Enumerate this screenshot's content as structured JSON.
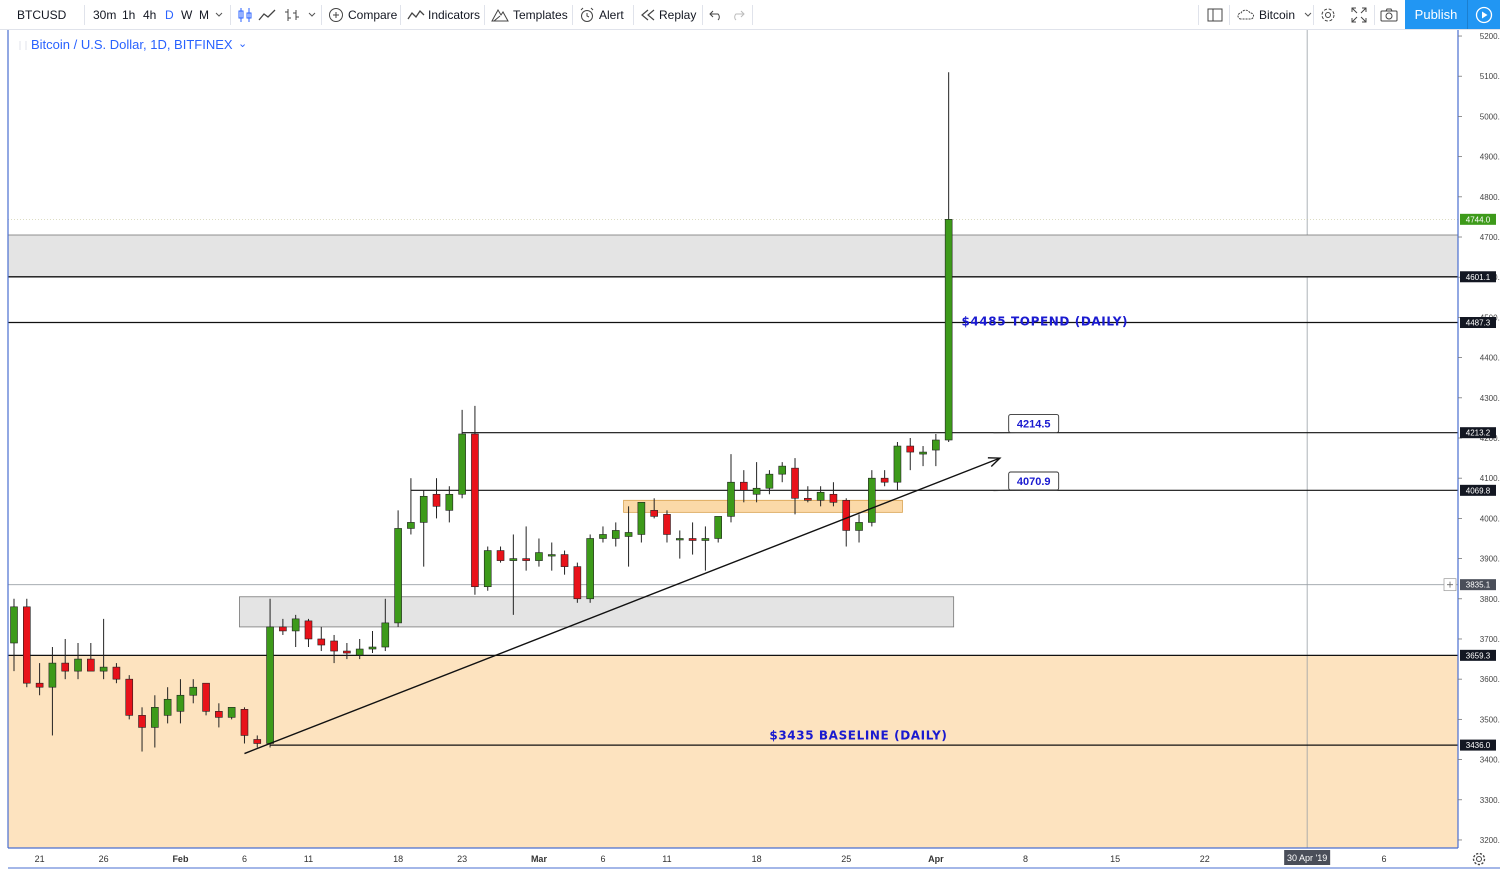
{
  "toolbar": {
    "symbol": "BTCUSD",
    "intervals": [
      "30m",
      "1h",
      "4h",
      "D",
      "W",
      "M"
    ],
    "active_interval": "D",
    "compare_label": "Compare",
    "indicators_label": "Indicators",
    "templates_label": "Templates",
    "alert_label": "Alert",
    "replay_label": "Replay",
    "layout_name": "Bitcoin",
    "publish_label": "Publish"
  },
  "chart_title": "Bitcoin / U.S. Dollar, 1D, BITFINEX",
  "colors": {
    "up": "#3d9a1a",
    "down": "#e8121a",
    "accent": "#2962ff",
    "zone_fill": "#fde3bf",
    "gray_zone": "#e4e4e4",
    "annotation": "#1a1ad0"
  },
  "chart_data": {
    "type": "candlestick",
    "title": "Bitcoin / U.S. Dollar, 1D, BITFINEX",
    "ylim": [
      3180,
      5215
    ],
    "xlim_days": [
      -2,
      110
    ],
    "y_ticks": [
      3200,
      3300,
      3400,
      3500,
      3600,
      3700,
      3800,
      3900,
      4000,
      4100,
      4200,
      4300,
      4400,
      4500,
      4600,
      4700,
      4800,
      4900,
      5000,
      5100,
      5200
    ],
    "x_ticks": [
      {
        "d": 0,
        "label": "21"
      },
      {
        "d": 5,
        "label": "26"
      },
      {
        "d": 11,
        "label": "Feb"
      },
      {
        "d": 16,
        "label": "6"
      },
      {
        "d": 21,
        "label": "11"
      },
      {
        "d": 28,
        "label": "18"
      },
      {
        "d": 33,
        "label": "23"
      },
      {
        "d": 39,
        "label": "Mar"
      },
      {
        "d": 44,
        "label": "6"
      },
      {
        "d": 49,
        "label": "11"
      },
      {
        "d": 56,
        "label": "18"
      },
      {
        "d": 63,
        "label": "25"
      },
      {
        "d": 70,
        "label": "Apr"
      },
      {
        "d": 77,
        "label": "8"
      },
      {
        "d": 84,
        "label": "15"
      },
      {
        "d": 91,
        "label": "22"
      },
      {
        "d": 105,
        "label": "6"
      }
    ],
    "crosshair": {
      "date_label": "30 Apr '19",
      "d": 99,
      "price_label": "3835.1",
      "price": 3835.1
    },
    "last_price": 4744.0,
    "candles": [
      [
        -2,
        3690,
        3800,
        3620,
        3780
      ],
      [
        -1,
        3780,
        3800,
        3580,
        3590
      ],
      [
        0,
        3590,
        3640,
        3560,
        3580
      ],
      [
        1,
        3580,
        3680,
        3460,
        3640
      ],
      [
        2,
        3640,
        3700,
        3600,
        3620
      ],
      [
        3,
        3620,
        3690,
        3600,
        3650
      ],
      [
        4,
        3650,
        3690,
        3620,
        3620
      ],
      [
        5,
        3620,
        3750,
        3600,
        3630
      ],
      [
        6,
        3630,
        3640,
        3590,
        3600
      ],
      [
        7,
        3600,
        3610,
        3500,
        3510
      ],
      [
        8,
        3510,
        3530,
        3420,
        3480
      ],
      [
        9,
        3480,
        3560,
        3430,
        3530
      ],
      [
        10,
        3510,
        3580,
        3490,
        3550
      ],
      [
        11,
        3520,
        3600,
        3490,
        3560
      ],
      [
        12,
        3560,
        3600,
        3540,
        3580
      ],
      [
        13,
        3590,
        3590,
        3510,
        3520
      ],
      [
        14,
        3520,
        3540,
        3480,
        3505
      ],
      [
        15,
        3505,
        3530,
        3500,
        3530
      ],
      [
        16,
        3525,
        3530,
        3440,
        3460
      ],
      [
        17,
        3450,
        3460,
        3430,
        3440
      ],
      [
        18,
        3440,
        3800,
        3430,
        3730
      ],
      [
        19,
        3730,
        3750,
        3710,
        3720
      ],
      [
        20,
        3720,
        3760,
        3680,
        3750
      ],
      [
        21,
        3745,
        3750,
        3680,
        3700
      ],
      [
        22,
        3700,
        3730,
        3670,
        3685
      ],
      [
        23,
        3695,
        3710,
        3640,
        3670
      ],
      [
        24,
        3670,
        3690,
        3650,
        3665
      ],
      [
        25,
        3660,
        3700,
        3650,
        3675
      ],
      [
        26,
        3675,
        3720,
        3665,
        3680
      ],
      [
        27,
        3680,
        3800,
        3670,
        3740
      ],
      [
        28,
        3740,
        4020,
        3730,
        3975
      ],
      [
        29,
        3975,
        4100,
        3960,
        3990
      ],
      [
        30,
        3990,
        4070,
        3880,
        4055
      ],
      [
        31,
        4060,
        4100,
        4000,
        4030
      ],
      [
        32,
        4020,
        4080,
        3990,
        4060
      ],
      [
        33,
        4060,
        4270,
        4050,
        4210
      ],
      [
        34,
        4210,
        4280,
        3810,
        3830
      ],
      [
        35,
        3830,
        3930,
        3820,
        3920
      ],
      [
        36,
        3920,
        3930,
        3890,
        3895
      ],
      [
        37,
        3895,
        3960,
        3760,
        3900
      ],
      [
        38,
        3900,
        3980,
        3870,
        3895
      ],
      [
        39,
        3895,
        3950,
        3880,
        3915
      ],
      [
        40,
        3910,
        3940,
        3870,
        3910
      ],
      [
        41,
        3910,
        3920,
        3860,
        3880
      ],
      [
        42,
        3880,
        3890,
        3790,
        3800
      ],
      [
        43,
        3800,
        3960,
        3790,
        3950
      ],
      [
        44,
        3950,
        3980,
        3940,
        3960
      ],
      [
        45,
        3950,
        3990,
        3930,
        3970
      ],
      [
        46,
        3955,
        4030,
        3880,
        3965
      ],
      [
        47,
        3960,
        4040,
        3940,
        4040
      ],
      [
        48,
        4020,
        4050,
        4000,
        4005
      ],
      [
        49,
        4010,
        4020,
        3940,
        3960
      ],
      [
        50,
        3950,
        3970,
        3900,
        3950
      ],
      [
        51,
        3950,
        3990,
        3910,
        3945
      ],
      [
        52,
        3945,
        3980,
        3870,
        3950
      ],
      [
        53,
        3950,
        4000,
        3940,
        4005
      ],
      [
        54,
        4005,
        4160,
        3990,
        4090
      ],
      [
        55,
        4090,
        4120,
        4040,
        4070
      ],
      [
        56,
        4060,
        4140,
        4040,
        4075
      ],
      [
        57,
        4075,
        4120,
        4060,
        4110
      ],
      [
        58,
        4110,
        4140,
        4090,
        4130
      ],
      [
        59,
        4125,
        4150,
        4010,
        4050
      ],
      [
        60,
        4050,
        4080,
        4040,
        4045
      ],
      [
        61,
        4045,
        4080,
        4030,
        4065
      ],
      [
        62,
        4060,
        4090,
        4030,
        4040
      ],
      [
        63,
        4045,
        4050,
        3930,
        3970
      ],
      [
        64,
        3970,
        4010,
        3940,
        3990
      ],
      [
        65,
        3990,
        4120,
        3980,
        4100
      ],
      [
        66,
        4100,
        4120,
        4080,
        4090
      ],
      [
        67,
        4090,
        4190,
        4070,
        4180
      ],
      [
        68,
        4180,
        4200,
        4120,
        4165
      ],
      [
        69,
        4160,
        4180,
        4130,
        4165
      ],
      [
        70,
        4170,
        4210,
        4130,
        4195
      ],
      [
        71,
        4195,
        5110,
        4190,
        4744
      ]
    ],
    "levels": [
      {
        "price": 4601.1,
        "label": "4601.1"
      },
      {
        "price": 4487.3,
        "label": "4487.3"
      },
      {
        "price": 4213.2,
        "label": "4213.2",
        "from_d": 33
      },
      {
        "price": 4069.8,
        "label": "4069.8",
        "from_d": 29
      },
      {
        "price": 3659.3,
        "label": "3659.3"
      },
      {
        "price": 3436.0,
        "label": "3436.0",
        "from_d": 18
      }
    ],
    "zones": [
      {
        "kind": "gray",
        "y0": 4600,
        "y1": 4705,
        "d0": -2,
        "d1": 110
      },
      {
        "kind": "gray",
        "y0": 3730,
        "y1": 3805,
        "d0": 16,
        "d1": 71
      },
      {
        "kind": "orange",
        "y0": 4015,
        "y1": 4045,
        "d0": 46,
        "d1": 67
      },
      {
        "kind": "fill",
        "y0": 3180,
        "y1": 3659.3,
        "d0": -2,
        "d1": 110
      }
    ],
    "trendline": {
      "d0": 16,
      "p0": 3415,
      "d1": 75,
      "p1": 4150
    },
    "annotations": [
      {
        "text": "$4485 TOPEND (DAILY)",
        "d": 72,
        "price": 4480
      },
      {
        "text": "$3435 BASELINE (DAILY)",
        "d": 57,
        "price": 3450
      }
    ],
    "callouts": [
      {
        "text": "4214.5",
        "d": 76,
        "price": 4236,
        "target_d": 74.5,
        "target_price": 4213
      },
      {
        "text": "4070.9",
        "d": 76,
        "price": 4093,
        "target_d": 74.5,
        "target_price": 4069
      }
    ]
  }
}
